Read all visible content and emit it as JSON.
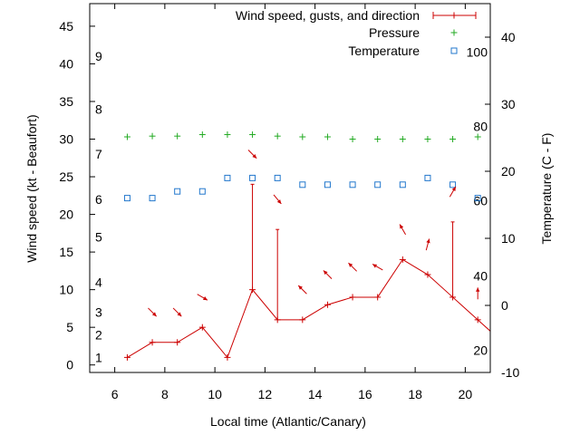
{
  "chart_data": {
    "type": "line",
    "xlabel": "Local time (Atlantic/Canary)",
    "ylabel": "Wind speed (kt - Beaufort)",
    "y2label": "Temperature (C - F)",
    "xlim": [
      5,
      21
    ],
    "ylim": [
      -1,
      48
    ],
    "y2lim": [
      -10,
      45
    ],
    "xticks": [
      6,
      8,
      10,
      12,
      14,
      16,
      18,
      20
    ],
    "yticks": [
      0,
      5,
      10,
      15,
      20,
      25,
      30,
      35,
      40,
      45
    ],
    "y2ticks": [
      -10,
      0,
      10,
      20,
      30,
      40
    ],
    "beaufort_labels": [
      {
        "label": "1",
        "kt": 1
      },
      {
        "label": "2",
        "kt": 4
      },
      {
        "label": "3",
        "kt": 7
      },
      {
        "label": "4",
        "kt": 11
      },
      {
        "label": "5",
        "kt": 17
      },
      {
        "label": "6",
        "kt": 22
      },
      {
        "label": "7",
        "kt": 28
      },
      {
        "label": "8",
        "kt": 34
      },
      {
        "label": "9",
        "kt": 41
      }
    ],
    "fahrenheit_labels": [
      {
        "label": "20",
        "c": -6.7
      },
      {
        "label": "40",
        "c": 4.4
      },
      {
        "label": "60",
        "c": 15.6
      },
      {
        "label": "80",
        "c": 26.7
      },
      {
        "label": "100",
        "c": 37.8
      }
    ],
    "legend": {
      "position": "top-right",
      "entries": [
        "Wind speed, gusts, and direction",
        "Pressure",
        "Temperature"
      ]
    },
    "colors": {
      "wind": "#cc0000",
      "pressure": "#22aa22",
      "temperature": "#2277cc",
      "frame": "#000000"
    },
    "series": [
      {
        "name": "Wind speed, gusts, and direction",
        "x": [
          6.5,
          7.5,
          8.5,
          9.5,
          10.5,
          11.5,
          12.5,
          13.5,
          14.5,
          15.5,
          16.5,
          17.5,
          18.5,
          19.5,
          20.5,
          21
        ],
        "values": [
          1,
          3,
          3,
          5,
          1,
          10,
          6,
          6,
          8,
          9,
          9,
          14,
          12,
          9,
          6,
          4.5
        ],
        "gusts": [
          {
            "x": 11.5,
            "value": 24
          },
          {
            "x": 12.5,
            "value": 18
          },
          {
            "x": 19.5,
            "value": 19
          }
        ],
        "direction_arrows": [
          {
            "x": 7.5,
            "y": 7,
            "dir_deg": 135
          },
          {
            "x": 8.5,
            "y": 7,
            "dir_deg": 135
          },
          {
            "x": 9.5,
            "y": 9,
            "dir_deg": 120
          },
          {
            "x": 11.5,
            "y": 28,
            "dir_deg": 135
          },
          {
            "x": 12.5,
            "y": 22,
            "dir_deg": 140
          },
          {
            "x": 13.5,
            "y": 10,
            "dir_deg": 315
          },
          {
            "x": 14.5,
            "y": 12,
            "dir_deg": 315
          },
          {
            "x": 15.5,
            "y": 13,
            "dir_deg": 315
          },
          {
            "x": 16.5,
            "y": 13,
            "dir_deg": 300
          },
          {
            "x": 17.5,
            "y": 18,
            "dir_deg": 330
          },
          {
            "x": 18.5,
            "y": 16,
            "dir_deg": 15
          },
          {
            "x": 19.5,
            "y": 23,
            "dir_deg": 30
          },
          {
            "x": 20.5,
            "y": 9.5,
            "dir_deg": 0
          }
        ]
      },
      {
        "name": "Pressure",
        "x": [
          6.5,
          7.5,
          8.5,
          9.5,
          10.5,
          11.5,
          12.5,
          13.5,
          14.5,
          15.5,
          16.5,
          17.5,
          18.5,
          19.5,
          20.5
        ],
        "values": [
          30.3,
          30.4,
          30.4,
          30.6,
          30.6,
          30.6,
          30.4,
          30.3,
          30.3,
          30.0,
          30.0,
          30.0,
          30.0,
          30.0,
          30.3
        ]
      },
      {
        "name": "Temperature",
        "axis": "y2",
        "x": [
          6.5,
          7.5,
          8.5,
          9.5,
          10.5,
          11.5,
          12.5,
          13.5,
          14.5,
          15.5,
          16.5,
          17.5,
          18.5,
          19.5,
          20.5
        ],
        "values": [
          16,
          16,
          17,
          17,
          19,
          19,
          19,
          18,
          18,
          18,
          18,
          18,
          19,
          18,
          16
        ]
      }
    ]
  }
}
